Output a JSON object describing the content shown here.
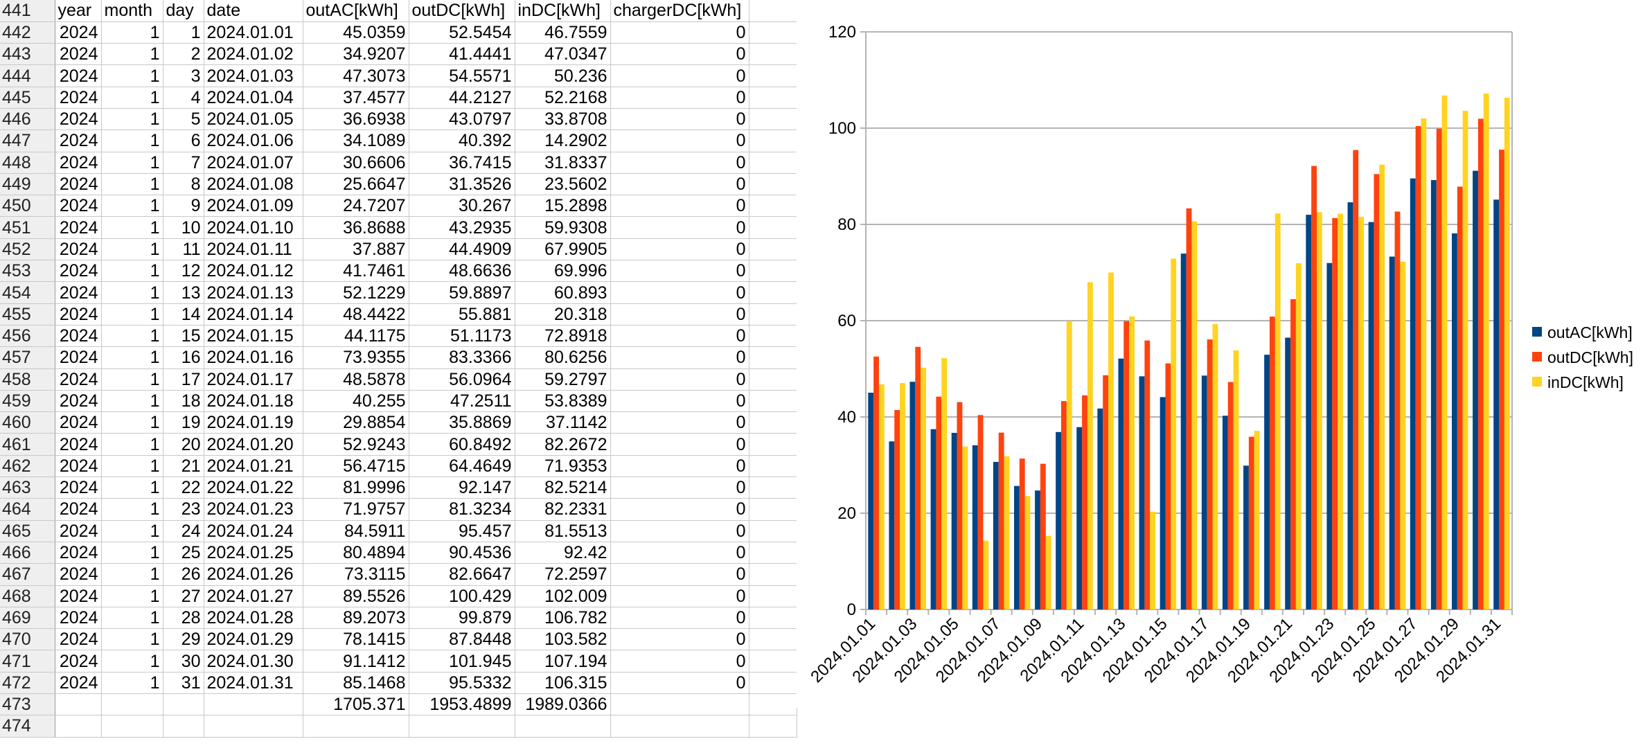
{
  "spreadsheet": {
    "first_row_number": 441,
    "headers": [
      "year",
      "month",
      "day",
      "date",
      "outAC[kWh]",
      "outDC[kWh]",
      "inDC[kWh]",
      "chargerDC[kWh]"
    ],
    "rows": [
      [
        "2024",
        "1",
        "1",
        "2024.01.01",
        "45.0359",
        "52.5454",
        "46.7559",
        "0"
      ],
      [
        "2024",
        "1",
        "2",
        "2024.01.02",
        "34.9207",
        "41.4441",
        "47.0347",
        "0"
      ],
      [
        "2024",
        "1",
        "3",
        "2024.01.03",
        "47.3073",
        "54.5571",
        "50.236",
        "0"
      ],
      [
        "2024",
        "1",
        "4",
        "2024.01.04",
        "37.4577",
        "44.2127",
        "52.2168",
        "0"
      ],
      [
        "2024",
        "1",
        "5",
        "2024.01.05",
        "36.6938",
        "43.0797",
        "33.8708",
        "0"
      ],
      [
        "2024",
        "1",
        "6",
        "2024.01.06",
        "34.1089",
        "40.392",
        "14.2902",
        "0"
      ],
      [
        "2024",
        "1",
        "7",
        "2024.01.07",
        "30.6606",
        "36.7415",
        "31.8337",
        "0"
      ],
      [
        "2024",
        "1",
        "8",
        "2024.01.08",
        "25.6647",
        "31.3526",
        "23.5602",
        "0"
      ],
      [
        "2024",
        "1",
        "9",
        "2024.01.09",
        "24.7207",
        "30.267",
        "15.2898",
        "0"
      ],
      [
        "2024",
        "1",
        "10",
        "2024.01.10",
        "36.8688",
        "43.2935",
        "59.9308",
        "0"
      ],
      [
        "2024",
        "1",
        "11",
        "2024.01.11",
        "37.887",
        "44.4909",
        "67.9905",
        "0"
      ],
      [
        "2024",
        "1",
        "12",
        "2024.01.12",
        "41.7461",
        "48.6636",
        "69.996",
        "0"
      ],
      [
        "2024",
        "1",
        "13",
        "2024.01.13",
        "52.1229",
        "59.8897",
        "60.893",
        "0"
      ],
      [
        "2024",
        "1",
        "14",
        "2024.01.14",
        "48.4422",
        "55.881",
        "20.318",
        "0"
      ],
      [
        "2024",
        "1",
        "15",
        "2024.01.15",
        "44.1175",
        "51.1173",
        "72.8918",
        "0"
      ],
      [
        "2024",
        "1",
        "16",
        "2024.01.16",
        "73.9355",
        "83.3366",
        "80.6256",
        "0"
      ],
      [
        "2024",
        "1",
        "17",
        "2024.01.17",
        "48.5878",
        "56.0964",
        "59.2797",
        "0"
      ],
      [
        "2024",
        "1",
        "18",
        "2024.01.18",
        "40.255",
        "47.2511",
        "53.8389",
        "0"
      ],
      [
        "2024",
        "1",
        "19",
        "2024.01.19",
        "29.8854",
        "35.8869",
        "37.1142",
        "0"
      ],
      [
        "2024",
        "1",
        "20",
        "2024.01.20",
        "52.9243",
        "60.8492",
        "82.2672",
        "0"
      ],
      [
        "2024",
        "1",
        "21",
        "2024.01.21",
        "56.4715",
        "64.4649",
        "71.9353",
        "0"
      ],
      [
        "2024",
        "1",
        "22",
        "2024.01.22",
        "81.9996",
        "92.147",
        "82.5214",
        "0"
      ],
      [
        "2024",
        "1",
        "23",
        "2024.01.23",
        "71.9757",
        "81.3234",
        "82.2331",
        "0"
      ],
      [
        "2024",
        "1",
        "24",
        "2024.01.24",
        "84.5911",
        "95.457",
        "81.5513",
        "0"
      ],
      [
        "2024",
        "1",
        "25",
        "2024.01.25",
        "80.4894",
        "90.4536",
        "92.42",
        "0"
      ],
      [
        "2024",
        "1",
        "26",
        "2024.01.26",
        "73.3115",
        "82.6647",
        "72.2597",
        "0"
      ],
      [
        "2024",
        "1",
        "27",
        "2024.01.27",
        "89.5526",
        "100.429",
        "102.009",
        "0"
      ],
      [
        "2024",
        "1",
        "28",
        "2024.01.28",
        "89.2073",
        "99.879",
        "106.782",
        "0"
      ],
      [
        "2024",
        "1",
        "29",
        "2024.01.29",
        "78.1415",
        "87.8448",
        "103.582",
        "0"
      ],
      [
        "2024",
        "1",
        "30",
        "2024.01.30",
        "91.1412",
        "101.945",
        "107.194",
        "0"
      ],
      [
        "2024",
        "1",
        "31",
        "2024.01.31",
        "85.1468",
        "95.5332",
        "106.315",
        "0"
      ]
    ],
    "totals": [
      "",
      "",
      "",
      "",
      "1705.371",
      "1953.4899",
      "1989.0366",
      ""
    ],
    "last_row_number": 474
  },
  "chart_data": {
    "type": "bar",
    "ylim": [
      0,
      120
    ],
    "yticks": [
      0,
      20,
      40,
      60,
      80,
      100,
      120
    ],
    "grid": true,
    "legend_position": "right",
    "xtick_labels": [
      "2024.01.01",
      "2024.01.03",
      "2024.01.05",
      "2024.01.07",
      "2024.01.09",
      "2024.01.11",
      "2024.01.13",
      "2024.01.15",
      "2024.01.17",
      "2024.01.19",
      "2024.01.21",
      "2024.01.23",
      "2024.01.25",
      "2024.01.27",
      "2024.01.29",
      "2024.01.31"
    ],
    "categories": [
      "2024.01.01",
      "2024.01.02",
      "2024.01.03",
      "2024.01.04",
      "2024.01.05",
      "2024.01.06",
      "2024.01.07",
      "2024.01.08",
      "2024.01.09",
      "2024.01.10",
      "2024.01.11",
      "2024.01.12",
      "2024.01.13",
      "2024.01.14",
      "2024.01.15",
      "2024.01.16",
      "2024.01.17",
      "2024.01.18",
      "2024.01.19",
      "2024.01.20",
      "2024.01.21",
      "2024.01.22",
      "2024.01.23",
      "2024.01.24",
      "2024.01.25",
      "2024.01.26",
      "2024.01.27",
      "2024.01.28",
      "2024.01.29",
      "2024.01.30",
      "2024.01.31"
    ],
    "series": [
      {
        "name": "outAC[kWh]",
        "color": "#004586",
        "values": [
          45.0359,
          34.9207,
          47.3073,
          37.4577,
          36.6938,
          34.1089,
          30.6606,
          25.6647,
          24.7207,
          36.8688,
          37.887,
          41.7461,
          52.1229,
          48.4422,
          44.1175,
          73.9355,
          48.5878,
          40.255,
          29.8854,
          52.9243,
          56.4715,
          81.9996,
          71.9757,
          84.5911,
          80.4894,
          73.3115,
          89.5526,
          89.2073,
          78.1415,
          91.1412,
          85.1468
        ]
      },
      {
        "name": "outDC[kWh]",
        "color": "#ff420e",
        "values": [
          52.5454,
          41.4441,
          54.5571,
          44.2127,
          43.0797,
          40.392,
          36.7415,
          31.3526,
          30.267,
          43.2935,
          44.4909,
          48.6636,
          59.8897,
          55.881,
          51.1173,
          83.3366,
          56.0964,
          47.2511,
          35.8869,
          60.8492,
          64.4649,
          92.147,
          81.3234,
          95.457,
          90.4536,
          82.6647,
          100.429,
          99.879,
          87.8448,
          101.945,
          95.5332
        ]
      },
      {
        "name": "inDC[kWh]",
        "color": "#ffd320",
        "values": [
          46.7559,
          47.0347,
          50.236,
          52.2168,
          33.8708,
          14.2902,
          31.8337,
          23.5602,
          15.2898,
          59.9308,
          67.9905,
          69.996,
          60.893,
          20.318,
          72.8918,
          80.6256,
          59.2797,
          53.8389,
          37.1142,
          82.2672,
          71.9353,
          82.5214,
          82.2331,
          81.5513,
          92.42,
          72.2597,
          102.009,
          106.782,
          103.582,
          107.194,
          106.315
        ]
      }
    ]
  }
}
